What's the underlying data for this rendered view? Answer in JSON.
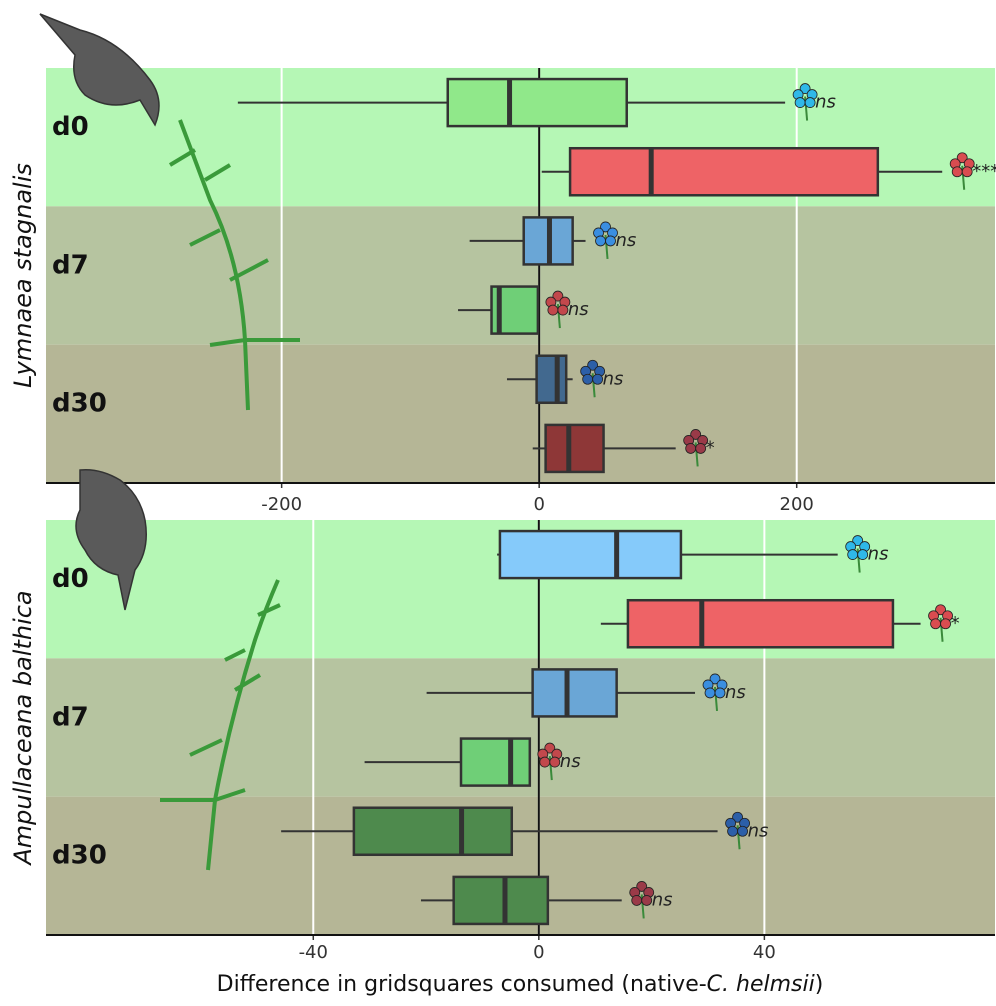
{
  "chart_data": [
    {
      "type": "box",
      "ylabel": "Lymnaea stagnalis",
      "categories": [
        "d0",
        "d7",
        "d30"
      ],
      "band_colors": [
        "#b5f7b5",
        "#b6c4a0",
        "#b5b696"
      ],
      "xlim": [
        -383,
        354
      ],
      "xticks": [
        -200,
        0,
        200
      ],
      "grid": true,
      "reference_line": 0,
      "boxes": [
        {
          "min": -234,
          "q1": -71,
          "median": -23,
          "q3": 68,
          "max": 191,
          "color": "#90e88a",
          "label": "ns",
          "flower_color": "#2fb8e8"
        },
        {
          "min": 2,
          "q1": 24,
          "median": 87,
          "q3": 263,
          "max": 313,
          "color": "#ee6366",
          "label": "***",
          "flower_color": "#d94c50"
        },
        {
          "min": -54,
          "q1": -12,
          "median": 8,
          "q3": 26,
          "max": 36,
          "color": "#6aa6d6",
          "label": "ns",
          "flower_color": "#3a8ee0"
        },
        {
          "min": -63,
          "q1": -37,
          "median": -31,
          "q3": -1,
          "max": -1,
          "color": "#6fcf77",
          "label": "ns",
          "flower_color": "#c2484c"
        },
        {
          "min": -25,
          "q1": -2,
          "median": 14,
          "q3": 21,
          "max": 26,
          "color": "#42698f",
          "label": "ns",
          "flower_color": "#2c5fa8"
        },
        {
          "min": -5,
          "q1": 5,
          "median": 23,
          "q3": 50,
          "max": 106,
          "color": "#8e3737",
          "label": "*",
          "flower_color": "#9a3a48"
        }
      ]
    },
    {
      "type": "box",
      "ylabel": "Ampullaceana balthica",
      "categories": [
        "d0",
        "d7",
        "d30"
      ],
      "band_colors": [
        "#b5f7b5",
        "#b6c4a0",
        "#b5b696"
      ],
      "xlim": [
        -87.4,
        80.9
      ],
      "xticks": [
        -40,
        0,
        40
      ],
      "grid": true,
      "reference_line": 0,
      "xlabel": [
        "Difference in gridsquares consumed (native-",
        "C. helmsii",
        ")"
      ],
      "boxes": [
        {
          "min": -7.4,
          "q1": -6.9,
          "median": 13.8,
          "q3": 25.2,
          "max": 53.0,
          "color": "#85cafa",
          "label": "ns",
          "flower_color": "#2fb8e8"
        },
        {
          "min": 11.0,
          "q1": 15.8,
          "median": 28.9,
          "q3": 62.8,
          "max": 67.7,
          "color": "#ee6366",
          "label": "*",
          "flower_color": "#d94c50"
        },
        {
          "min": -19.9,
          "q1": -1.1,
          "median": 5.0,
          "q3": 13.8,
          "max": 27.7,
          "color": "#6aa6d6",
          "label": "ns",
          "flower_color": "#3a8ee0"
        },
        {
          "min": -30.9,
          "q1": -13.8,
          "median": -5.0,
          "q3": -1.6,
          "max": -1.6,
          "color": "#6fcf77",
          "label": "ns",
          "flower_color": "#c2484c"
        },
        {
          "min": -45.7,
          "q1": -32.8,
          "median": -13.7,
          "q3": -4.8,
          "max": 31.7,
          "color": "#4e8a4d",
          "label": "ns",
          "flower_color": "#2c5fa8"
        },
        {
          "min": -20.9,
          "q1": -15.1,
          "median": -6.0,
          "q3": 1.6,
          "max": 14.7,
          "color": "#4e8a4d",
          "label": "ns",
          "flower_color": "#9a3a48"
        }
      ]
    }
  ]
}
